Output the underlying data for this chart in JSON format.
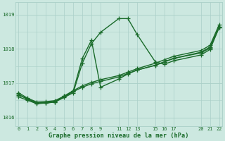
{
  "title": "Graphe pression niveau de la mer (hPa)",
  "bg_color": "#cce8e0",
  "grid_color": "#aacfc8",
  "line_color": "#1a6b2a",
  "xlim": [
    -0.3,
    22.3
  ],
  "ylim": [
    1015.75,
    1019.35
  ],
  "yticks": [
    1016,
    1017,
    1018,
    1019
  ],
  "xticks": [
    0,
    1,
    2,
    3,
    4,
    5,
    6,
    7,
    8,
    9,
    11,
    12,
    13,
    15,
    16,
    17,
    20,
    21,
    22
  ],
  "lines": [
    {
      "x": [
        0,
        1,
        2,
        3,
        4,
        5,
        6,
        7,
        8,
        9,
        11,
        12,
        13,
        15,
        16,
        17,
        20,
        21,
        22
      ],
      "y": [
        1016.65,
        1016.55,
        1016.42,
        1016.42,
        1016.45,
        1016.62,
        1016.77,
        1017.72,
        1018.25,
        1016.88,
        1017.12,
        1017.27,
        1017.38,
        1017.52,
        1017.62,
        1017.72,
        1017.88,
        1018.02,
        1018.62
      ]
    },
    {
      "x": [
        0,
        1,
        2,
        3,
        4,
        5,
        6,
        7,
        8,
        9,
        11,
        12,
        13,
        15,
        16,
        17,
        20,
        21,
        22
      ],
      "y": [
        1016.6,
        1016.5,
        1016.4,
        1016.42,
        1016.45,
        1016.58,
        1016.72,
        1017.58,
        1018.15,
        1018.48,
        1018.88,
        1018.88,
        1018.42,
        1017.62,
        1017.55,
        1017.65,
        1017.82,
        1017.98,
        1018.62
      ]
    },
    {
      "x": [
        0,
        1,
        2,
        3,
        4,
        5,
        6,
        7,
        8,
        9,
        11,
        12,
        13,
        15,
        16,
        17,
        20,
        21,
        22
      ],
      "y": [
        1016.68,
        1016.52,
        1016.42,
        1016.44,
        1016.47,
        1016.6,
        1016.75,
        1016.88,
        1016.98,
        1017.05,
        1017.18,
        1017.28,
        1017.38,
        1017.52,
        1017.62,
        1017.72,
        1017.9,
        1018.05,
        1018.65
      ]
    },
    {
      "x": [
        0,
        1,
        2,
        3,
        4,
        5,
        6,
        7,
        8,
        9,
        11,
        12,
        13,
        15,
        16,
        17,
        20,
        21,
        22
      ],
      "y": [
        1016.72,
        1016.56,
        1016.45,
        1016.46,
        1016.49,
        1016.62,
        1016.78,
        1016.92,
        1017.02,
        1017.1,
        1017.22,
        1017.32,
        1017.42,
        1017.58,
        1017.68,
        1017.78,
        1017.95,
        1018.1,
        1018.7
      ]
    }
  ],
  "marker": "+",
  "markersize": 4,
  "linewidth": 1.0
}
